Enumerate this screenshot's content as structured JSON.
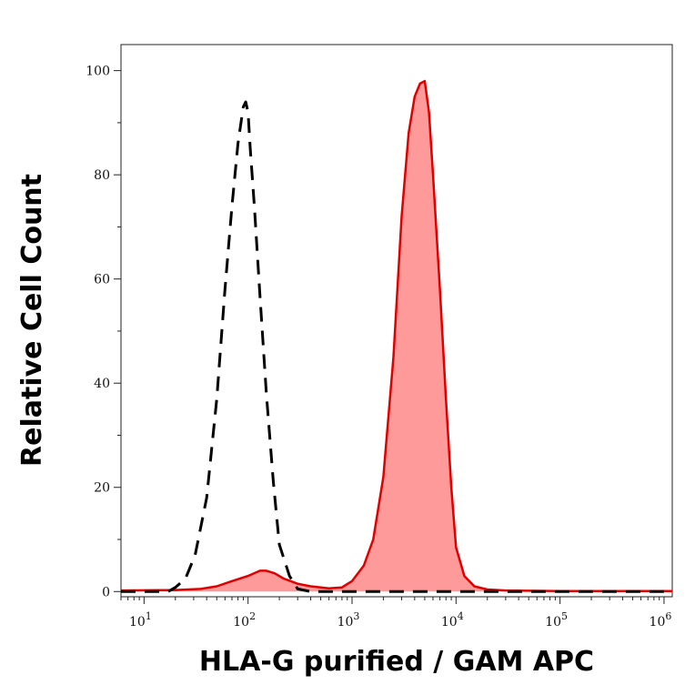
{
  "chart_data": {
    "type": "area",
    "xlabel": "HLA-G purified / GAM APC",
    "ylabel": "Relative Cell Count",
    "x_scale": "log",
    "xlim": [
      6,
      1200000
    ],
    "ylim": [
      -1,
      105
    ],
    "x_ticks": [
      {
        "value": 10,
        "base": "10",
        "exp": "1"
      },
      {
        "value": 100,
        "base": "10",
        "exp": "2"
      },
      {
        "value": 1000,
        "base": "10",
        "exp": "3"
      },
      {
        "value": 10000,
        "base": "10",
        "exp": "4"
      },
      {
        "value": 100000,
        "base": "10",
        "exp": "5"
      },
      {
        "value": 1000000,
        "base": "10",
        "exp": "6"
      }
    ],
    "y_ticks": [
      {
        "value": 0,
        "label": "0"
      },
      {
        "value": 20,
        "label": "20"
      },
      {
        "value": 40,
        "label": "40"
      },
      {
        "value": 60,
        "label": "60"
      },
      {
        "value": 80,
        "label": "80"
      },
      {
        "value": 100,
        "label": "100"
      }
    ],
    "grid": false,
    "legend": "none",
    "series": [
      {
        "style": "dashed",
        "color": "#000000",
        "fill": false,
        "x": [
          6,
          17,
          20,
          25,
          31,
          40,
          50,
          60,
          70,
          80,
          90,
          95,
          100,
          105,
          115,
          130,
          150,
          175,
          200,
          250,
          300,
          400,
          1200000
        ],
        "y": [
          0,
          0,
          0.8,
          2.5,
          7,
          18,
          37,
          58,
          74,
          86,
          93,
          94,
          92,
          85,
          74,
          57,
          38,
          21,
          9,
          3,
          0.5,
          0,
          0
        ]
      },
      {
        "style": "solid",
        "color": "#e00000",
        "fill": true,
        "fill_color": "#ff9a9a",
        "x": [
          6,
          20,
          35,
          50,
          70,
          100,
          130,
          150,
          180,
          220,
          300,
          400,
          600,
          800,
          1000,
          1300,
          1600,
          2000,
          2500,
          3000,
          3500,
          4000,
          4500,
          5000,
          5500,
          6000,
          7000,
          8000,
          9000,
          10000,
          12000,
          15000,
          20000,
          30000,
          100000,
          1000000,
          1200000
        ],
        "y": [
          0.2,
          0.3,
          0.5,
          1,
          2,
          3,
          4,
          4,
          3.5,
          2.5,
          1.5,
          1,
          0.6,
          0.8,
          2,
          5,
          10,
          22,
          45,
          72,
          88,
          95,
          97.5,
          98,
          92,
          80,
          58,
          37,
          20,
          8.5,
          3,
          1,
          0.4,
          0.2,
          0.1,
          0.1,
          0.1
        ]
      }
    ]
  }
}
